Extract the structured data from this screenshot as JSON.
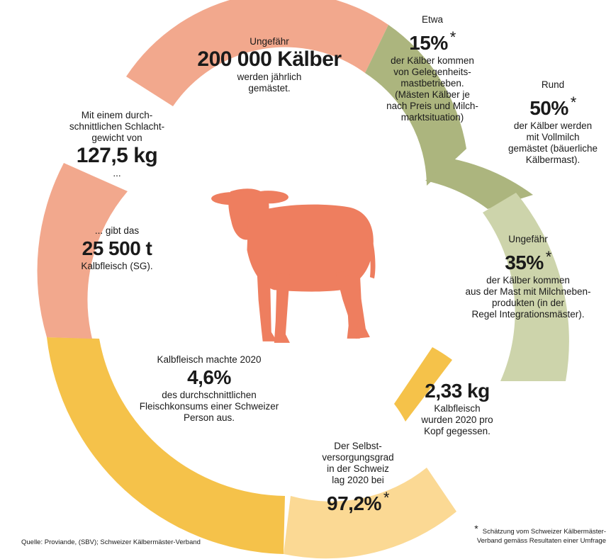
{
  "colors": {
    "salmon": "#f2a88d",
    "olive_dark": "#acb57e",
    "olive_light": "#cdd4ab",
    "orange_yellow": "#f5c24a",
    "pale_yellow": "#fbd994",
    "calf": "#ee7e5f"
  },
  "icon": "calf-icon",
  "segments": {
    "kaelber": {
      "pre": "Ungefähr",
      "value": "200 000 Kälber",
      "post": [
        "werden jährlich",
        "gemästet."
      ]
    },
    "gelegenheit": {
      "pre": "Etwa",
      "value": "15%",
      "star": "*",
      "post": [
        "der Kälber kommen",
        "von Gelegenheits-",
        "mastbetrieben.",
        "(Mästen Kälber je",
        "nach Preis und Milch-",
        "marktsituation)"
      ]
    },
    "vollmilch": {
      "pre": "Rund",
      "value": "50%",
      "star": "*",
      "post": [
        "der Kälber werden",
        "mit Vollmilch",
        "gemästet (bäuerliche",
        "Kälbermast)."
      ]
    },
    "milchneben": {
      "pre": "Ungefähr",
      "value": "35%",
      "star": "*",
      "post": [
        "der Kälber kommen",
        "aus der Mast mit Milchneben-",
        "produkten (in der",
        "Regel Integrationsmäster)."
      ]
    },
    "pro_kopf": {
      "value": "2,33 kg",
      "post": [
        "Kalbfleisch",
        "wurden 2020 pro",
        "Kopf gegessen."
      ]
    },
    "selbstversorgung": {
      "pre": [
        "Der Selbst-",
        "versorgungsgrad",
        "in der Schweiz",
        "lag 2020 bei"
      ],
      "value": "97,2%",
      "star": "*"
    },
    "konsum": {
      "pre": "Kalbfleisch machte 2020",
      "value": "4,6%",
      "post": [
        "des durchschnittlichen",
        "Fleischkonsums einer Schweizer",
        "Person aus."
      ]
    },
    "kalbfleisch_total": {
      "pre": "... gibt das",
      "value": "25 500 t",
      "post": "Kalbfleisch (SG)."
    },
    "schlachtgewicht": {
      "pre": [
        "Mit einem durch-",
        "schnittlichen Schlacht-",
        "gewicht von"
      ],
      "value": "127,5 kg",
      "post": "..."
    }
  },
  "footer": {
    "source": "Quelle: Proviande, (SBV); Schweizer Kälbermäster-Verband",
    "note_star": "*",
    "note": [
      "Schätzung vom Schweizer Kälbermäster-",
      "Verband gemäss Resultaten einer Umfrage"
    ]
  }
}
